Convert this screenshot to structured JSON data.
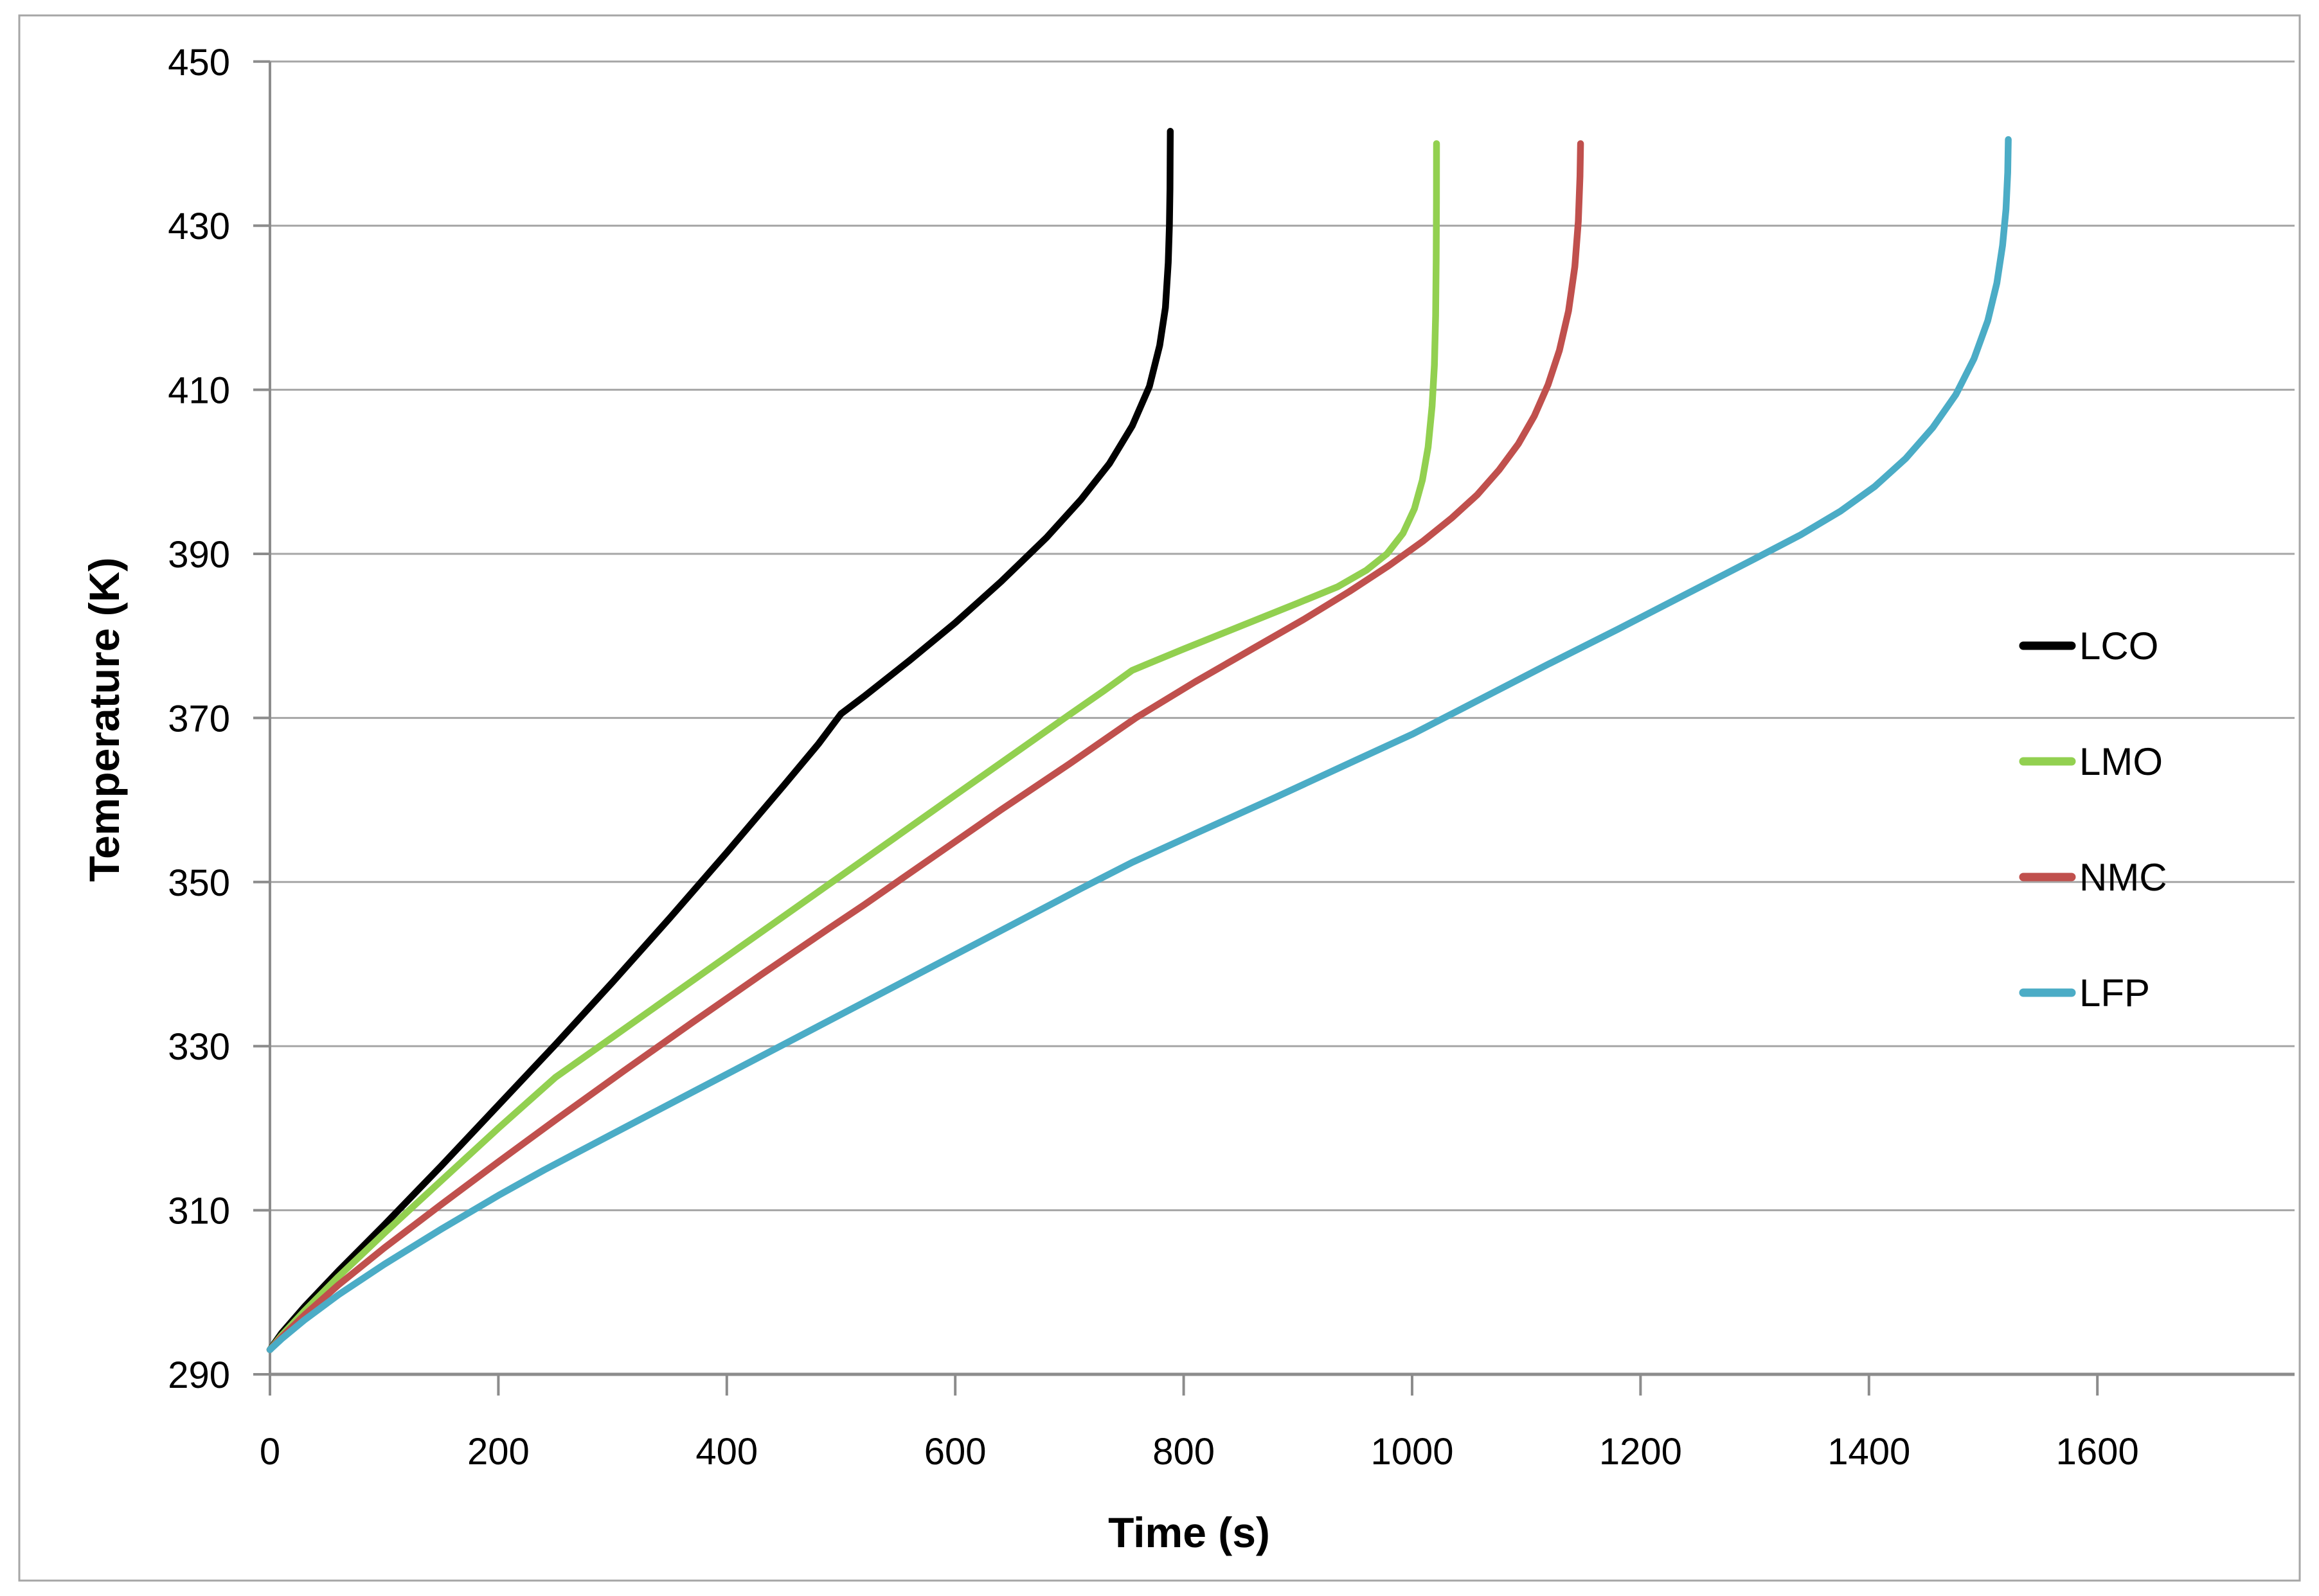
{
  "page": {
    "background": "#ffffff",
    "border_color": "#a6a6a6"
  },
  "chart_data": {
    "type": "line",
    "title": "",
    "xlabel": "Time (s)",
    "ylabel": "Temperature (K)",
    "xlim": [
      0,
      1772
    ],
    "ylim": [
      290,
      450
    ],
    "x_ticks": [
      0,
      200,
      400,
      600,
      800,
      1000,
      1200,
      1400,
      1600
    ],
    "y_ticks": [
      290,
      310,
      330,
      350,
      370,
      390,
      410,
      430,
      450
    ],
    "grid": "horizontal-only",
    "grid_color": "#a6a6a6",
    "axis_color": "#8c8c8c",
    "tick_label_color": "#000000",
    "legend_position": "right-middle",
    "legend_entries": [
      {
        "label": "LCO",
        "color": "#000000"
      },
      {
        "label": "LMO",
        "color": "#92D050"
      },
      {
        "label": "NMC",
        "color": "#C0504D"
      },
      {
        "label": "LFP",
        "color": "#4BACC6"
      }
    ],
    "series": [
      {
        "name": "LCO",
        "color": "#000000",
        "points": [
          [
            0,
            293
          ],
          [
            10,
            295
          ],
          [
            30,
            298.2
          ],
          [
            60,
            302.6
          ],
          [
            100,
            308.2
          ],
          [
            150,
            315.4
          ],
          [
            200,
            322.8
          ],
          [
            250,
            330.2
          ],
          [
            300,
            337.8
          ],
          [
            350,
            345.6
          ],
          [
            400,
            353.6
          ],
          [
            450,
            361.8
          ],
          [
            480,
            366.8
          ],
          [
            500,
            370.5
          ],
          [
            520,
            372.6
          ],
          [
            560,
            377
          ],
          [
            600,
            381.6
          ],
          [
            640,
            386.6
          ],
          [
            680,
            392
          ],
          [
            710,
            396.6
          ],
          [
            735,
            401
          ],
          [
            755,
            405.6
          ],
          [
            770,
            410.4
          ],
          [
            779,
            415.4
          ],
          [
            784,
            420
          ],
          [
            786.5,
            425.5
          ],
          [
            787.5,
            430
          ],
          [
            788,
            434.5
          ],
          [
            788.3,
            441.5
          ]
        ]
      },
      {
        "name": "LMO",
        "color": "#92D050",
        "points": [
          [
            0,
            293
          ],
          [
            10,
            294.7
          ],
          [
            30,
            297.7
          ],
          [
            60,
            301.9
          ],
          [
            100,
            307.2
          ],
          [
            150,
            313.6
          ],
          [
            200,
            320
          ],
          [
            250,
            326.2
          ],
          [
            300,
            331.1
          ],
          [
            360,
            337
          ],
          [
            420,
            342.9
          ],
          [
            480,
            348.8
          ],
          [
            540,
            354.7
          ],
          [
            600,
            360.6
          ],
          [
            650,
            365.5
          ],
          [
            700,
            370.4
          ],
          [
            730,
            373.3
          ],
          [
            755,
            375.8
          ],
          [
            800,
            378.4
          ],
          [
            850,
            381.2
          ],
          [
            900,
            384
          ],
          [
            935,
            386
          ],
          [
            960,
            388
          ],
          [
            978,
            390
          ],
          [
            992,
            392.5
          ],
          [
            1002,
            395.5
          ],
          [
            1009,
            399
          ],
          [
            1014,
            403
          ],
          [
            1017.5,
            408
          ],
          [
            1019.5,
            413
          ],
          [
            1020.6,
            419
          ],
          [
            1021.1,
            426
          ],
          [
            1021.3,
            433
          ],
          [
            1021.4,
            440
          ]
        ]
      },
      {
        "name": "NMC",
        "color": "#C0504D",
        "points": [
          [
            0,
            293
          ],
          [
            10,
            294.5
          ],
          [
            30,
            297.2
          ],
          [
            60,
            300.9
          ],
          [
            100,
            305.4
          ],
          [
            150,
            310.7
          ],
          [
            200,
            315.9
          ],
          [
            250,
            321
          ],
          [
            310,
            327
          ],
          [
            370,
            332.9
          ],
          [
            430,
            338.7
          ],
          [
            490,
            344.4
          ],
          [
            520,
            347.2
          ],
          [
            580,
            353
          ],
          [
            640,
            358.8
          ],
          [
            700,
            364.4
          ],
          [
            758,
            370
          ],
          [
            810,
            374.4
          ],
          [
            860,
            378.4
          ],
          [
            905,
            382
          ],
          [
            945,
            385.4
          ],
          [
            980,
            388.6
          ],
          [
            1010,
            391.6
          ],
          [
            1035,
            394.4
          ],
          [
            1057,
            397.2
          ],
          [
            1076,
            400.2
          ],
          [
            1093,
            403.4
          ],
          [
            1107,
            406.8
          ],
          [
            1119,
            410.6
          ],
          [
            1129,
            414.8
          ],
          [
            1137,
            419.6
          ],
          [
            1142.5,
            425
          ],
          [
            1145.5,
            430.5
          ],
          [
            1147,
            436
          ],
          [
            1147.5,
            440
          ]
        ]
      },
      {
        "name": "LFP",
        "color": "#4BACC6",
        "points": [
          [
            0,
            293
          ],
          [
            10,
            294.3
          ],
          [
            30,
            296.6
          ],
          [
            60,
            299.7
          ],
          [
            100,
            303.4
          ],
          [
            150,
            307.7
          ],
          [
            200,
            311.8
          ],
          [
            240,
            314.9
          ],
          [
            300,
            319.3
          ],
          [
            370,
            324.4
          ],
          [
            440,
            329.5
          ],
          [
            510,
            334.6
          ],
          [
            580,
            339.7
          ],
          [
            650,
            344.8
          ],
          [
            710,
            349.2
          ],
          [
            755,
            352.4
          ],
          [
            810,
            355.9
          ],
          [
            880,
            360.3
          ],
          [
            950,
            364.8
          ],
          [
            1000,
            368
          ],
          [
            1060,
            372.3
          ],
          [
            1120,
            376.6
          ],
          [
            1180,
            380.8
          ],
          [
            1240,
            385.1
          ],
          [
            1300,
            389.4
          ],
          [
            1340,
            392.3
          ],
          [
            1375,
            395.2
          ],
          [
            1405,
            398.2
          ],
          [
            1432,
            401.6
          ],
          [
            1456,
            405.4
          ],
          [
            1476,
            409.4
          ],
          [
            1492,
            413.8
          ],
          [
            1504,
            418.4
          ],
          [
            1512,
            423
          ],
          [
            1517,
            427.6
          ],
          [
            1520,
            432
          ],
          [
            1521.5,
            436.5
          ],
          [
            1522,
            440.5
          ]
        ]
      }
    ]
  }
}
